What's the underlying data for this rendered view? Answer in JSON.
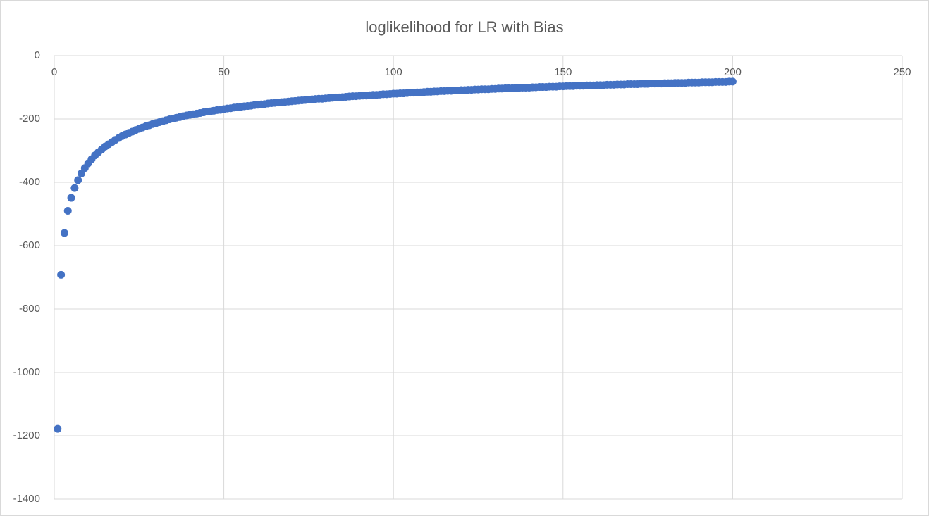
{
  "chart_data": {
    "type": "scatter",
    "title": "loglikelihood for LR with Bias",
    "color": "#4472c4",
    "grid": true,
    "xlim": [
      0,
      250
    ],
    "xticks": [
      0,
      50,
      100,
      150,
      200,
      250
    ],
    "ylim": [
      -1400,
      0
    ],
    "yticks": [
      -1400,
      -1200,
      -1000,
      -800,
      -600,
      -400,
      -200,
      0
    ],
    "x": [
      1,
      2,
      3,
      4,
      5,
      6,
      7,
      8,
      9,
      10,
      11,
      12,
      13,
      14,
      15,
      16,
      17,
      18,
      19,
      20,
      21,
      22,
      23,
      24,
      25,
      26,
      27,
      28,
      29,
      30,
      31,
      32,
      33,
      34,
      35,
      36,
      37,
      38,
      39,
      40,
      41,
      42,
      43,
      44,
      45,
      46,
      47,
      48,
      49,
      50,
      51,
      52,
      53,
      54,
      55,
      56,
      57,
      58,
      59,
      60,
      61,
      62,
      63,
      64,
      65,
      66,
      67,
      68,
      69,
      70,
      71,
      72,
      73,
      74,
      75,
      76,
      77,
      78,
      79,
      80,
      81,
      82,
      83,
      84,
      85,
      86,
      87,
      88,
      89,
      90,
      91,
      92,
      93,
      94,
      95,
      96,
      97,
      98,
      99,
      100,
      101,
      102,
      103,
      104,
      105,
      106,
      107,
      108,
      109,
      110,
      111,
      112,
      113,
      114,
      115,
      116,
      117,
      118,
      119,
      120,
      121,
      122,
      123,
      124,
      125,
      126,
      127,
      128,
      129,
      130,
      131,
      132,
      133,
      134,
      135,
      136,
      137,
      138,
      139,
      140,
      141,
      142,
      143,
      144,
      145,
      146,
      147,
      148,
      149,
      150,
      151,
      152,
      153,
      154,
      155,
      156,
      157,
      158,
      159,
      160,
      161,
      162,
      163,
      164,
      165,
      166,
      167,
      168,
      169,
      170,
      171,
      172,
      173,
      174,
      175,
      176,
      177,
      178,
      179,
      180,
      181,
      182,
      183,
      184,
      185,
      186,
      187,
      188,
      189,
      190,
      191,
      192,
      193,
      194,
      195,
      196,
      197,
      198,
      199,
      200
    ],
    "values": [
      -1178,
      -692,
      -560,
      -490,
      -449,
      -418,
      -393,
      -372,
      -355,
      -340,
      -327,
      -315,
      -305,
      -296,
      -287,
      -280,
      -273,
      -266,
      -260,
      -254,
      -249,
      -244,
      -240,
      -235,
      -231,
      -227,
      -223,
      -220,
      -216,
      -213,
      -210,
      -207,
      -204,
      -201,
      -199,
      -196,
      -194,
      -191,
      -189,
      -187,
      -185,
      -183,
      -181,
      -179,
      -177,
      -176,
      -174,
      -172,
      -171,
      -169,
      -167,
      -166,
      -164,
      -163,
      -162,
      -160,
      -159,
      -158,
      -156,
      -155,
      -154,
      -153,
      -151,
      -150,
      -149,
      -148,
      -147,
      -146,
      -145,
      -144,
      -143,
      -142,
      -141,
      -140,
      -139,
      -138,
      -137,
      -136,
      -136,
      -135,
      -134,
      -133,
      -132,
      -132,
      -131,
      -130,
      -129,
      -128,
      -128,
      -127,
      -126,
      -126,
      -125,
      -124,
      -124,
      -123,
      -122,
      -122,
      -121,
      -120,
      -120,
      -119,
      -119,
      -118,
      -117,
      -117,
      -116,
      -116,
      -115,
      -114,
      -114,
      -113,
      -113,
      -112,
      -112,
      -111,
      -111,
      -110,
      -110,
      -109,
      -109,
      -108,
      -108,
      -107,
      -107,
      -106,
      -106,
      -106,
      -105,
      -105,
      -104,
      -104,
      -103,
      -103,
      -103,
      -102,
      -102,
      -101,
      -101,
      -101,
      -100,
      -100,
      -99,
      -99,
      -99,
      -98,
      -98,
      -98,
      -97,
      -97,
      -96,
      -96,
      -96,
      -95,
      -95,
      -95,
      -94,
      -94,
      -94,
      -93,
      -93,
      -93,
      -92,
      -92,
      -92,
      -91,
      -91,
      -91,
      -90,
      -90,
      -90,
      -90,
      -89,
      -89,
      -89,
      -88,
      -88,
      -88,
      -88,
      -87,
      -87,
      -87,
      -86,
      -86,
      -86,
      -86,
      -85,
      -85,
      -85,
      -85,
      -84,
      -84,
      -84,
      -84,
      -83,
      -83,
      -83,
      -83,
      -82,
      -82
    ]
  }
}
